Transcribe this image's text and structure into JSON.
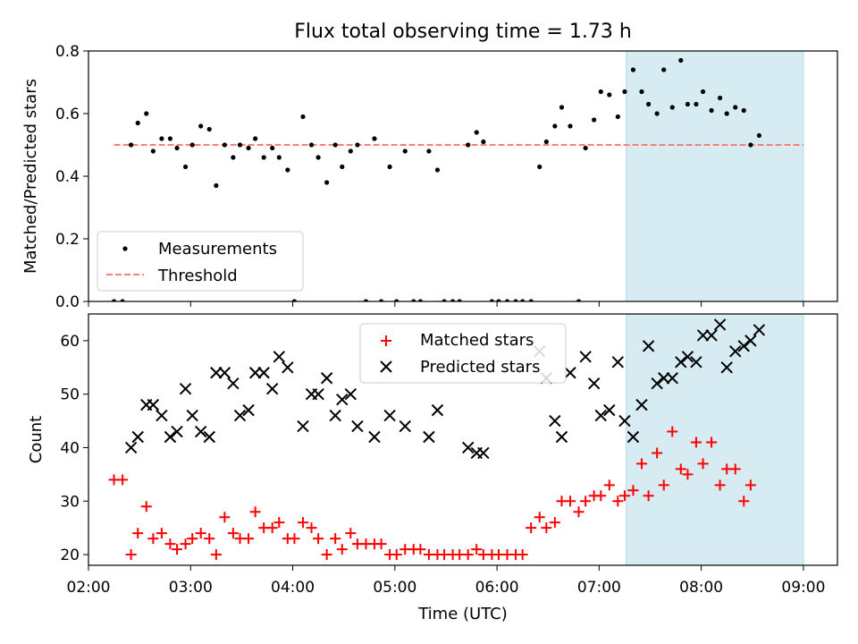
{
  "figure_title": "Flux total observing time = 1.73 h",
  "colors": {
    "measurement": "#000000",
    "threshold": "#ff7f7f",
    "matched": "#ff0000",
    "predicted": "#000000",
    "highlight_band": "#add8e6"
  },
  "chart_data": [
    {
      "type": "scatter",
      "title": "Flux total observing time = 1.73 h",
      "xlabel": "",
      "ylabel": "Matched/Predicted stars",
      "xlim": [
        "02:00",
        "09:20"
      ],
      "ylim": [
        0,
        0.8
      ],
      "yticks": [
        "0.0",
        "0.2",
        "0.4",
        "0.6",
        "0.8"
      ],
      "highlight_band": {
        "x_start": "07:16",
        "x_end": "09:00"
      },
      "threshold": {
        "name": "Threshold",
        "y": 0.5,
        "x_start": "02:15",
        "x_end": "09:00",
        "style": "dashed"
      },
      "legend_position": "lower-left",
      "series": [
        {
          "name": "Measurements",
          "marker": "dot",
          "points": [
            [
              "02:15",
              0
            ],
            [
              "02:20",
              0
            ],
            [
              "02:25",
              0.5
            ],
            [
              "02:29",
              0.57
            ],
            [
              "02:34",
              0.6
            ],
            [
              "02:38",
              0.48
            ],
            [
              "02:43",
              0.52
            ],
            [
              "02:48",
              0.52
            ],
            [
              "02:52",
              0.49
            ],
            [
              "02:57",
              0.43
            ],
            [
              "03:01",
              0.5
            ],
            [
              "03:06",
              0.56
            ],
            [
              "03:11",
              0.55
            ],
            [
              "03:15",
              0.37
            ],
            [
              "03:20",
              0.5
            ],
            [
              "03:25",
              0.46
            ],
            [
              "03:29",
              0.5
            ],
            [
              "03:34",
              0.49
            ],
            [
              "03:38",
              0.52
            ],
            [
              "03:43",
              0.46
            ],
            [
              "03:48",
              0.49
            ],
            [
              "03:52",
              0.46
            ],
            [
              "03:57",
              0.42
            ],
            [
              "04:01",
              0
            ],
            [
              "04:06",
              0.59
            ],
            [
              "04:11",
              0.5
            ],
            [
              "04:15",
              0.46
            ],
            [
              "04:20",
              0.38
            ],
            [
              "04:25",
              0.5
            ],
            [
              "04:29",
              0.43
            ],
            [
              "04:34",
              0.48
            ],
            [
              "04:38",
              0.5
            ],
            [
              "04:43",
              0
            ],
            [
              "04:48",
              0.52
            ],
            [
              "04:52",
              0
            ],
            [
              "04:57",
              0.43
            ],
            [
              "05:01",
              0
            ],
            [
              "05:06",
              0.48
            ],
            [
              "05:11",
              0
            ],
            [
              "05:15",
              0
            ],
            [
              "05:20",
              0.48
            ],
            [
              "05:25",
              0.42
            ],
            [
              "05:29",
              0
            ],
            [
              "05:34",
              0
            ],
            [
              "05:38",
              0
            ],
            [
              "05:43",
              0.5
            ],
            [
              "05:48",
              0.54
            ],
            [
              "05:52",
              0.51
            ],
            [
              "05:57",
              0
            ],
            [
              "06:01",
              0
            ],
            [
              "06:06",
              0
            ],
            [
              "06:11",
              0
            ],
            [
              "06:15",
              0
            ],
            [
              "06:20",
              0
            ],
            [
              "06:25",
              0.43
            ],
            [
              "06:29",
              0.51
            ],
            [
              "06:34",
              0.56
            ],
            [
              "06:38",
              0.62
            ],
            [
              "06:43",
              0.56
            ],
            [
              "06:48",
              0
            ],
            [
              "06:52",
              0.49
            ],
            [
              "06:57",
              0.58
            ],
            [
              "07:01",
              0.67
            ],
            [
              "07:06",
              0.66
            ],
            [
              "07:11",
              0.59
            ],
            [
              "07:15",
              0.67
            ],
            [
              "07:20",
              0.74
            ],
            [
              "07:25",
              0.67
            ],
            [
              "07:29",
              0.63
            ],
            [
              "07:34",
              0.6
            ],
            [
              "07:38",
              0.74
            ],
            [
              "07:43",
              0.62
            ],
            [
              "07:48",
              0.77
            ],
            [
              "07:52",
              0.63
            ],
            [
              "07:57",
              0.63
            ],
            [
              "08:01",
              0.67
            ],
            [
              "08:06",
              0.61
            ],
            [
              "08:11",
              0.65
            ],
            [
              "08:15",
              0.6
            ],
            [
              "08:20",
              0.62
            ],
            [
              "08:25",
              0.61
            ],
            [
              "08:29",
              0.5
            ],
            [
              "08:34",
              0.53
            ]
          ]
        }
      ]
    },
    {
      "type": "scatter",
      "xlabel": "Time (UTC)",
      "ylabel": "Count",
      "xlim": [
        "02:00",
        "09:20"
      ],
      "xticks": [
        "02:00",
        "03:00",
        "04:00",
        "05:00",
        "06:00",
        "07:00",
        "08:00",
        "09:00"
      ],
      "ylim": [
        18,
        65
      ],
      "yticks": [
        "20",
        "30",
        "40",
        "50",
        "60"
      ],
      "highlight_band": {
        "x_start": "07:16",
        "x_end": "09:00"
      },
      "legend_position": "top-center",
      "series": [
        {
          "name": "Matched stars",
          "marker": "plus",
          "points": [
            [
              "02:15",
              34
            ],
            [
              "02:20",
              34
            ],
            [
              "02:25",
              20
            ],
            [
              "02:29",
              24
            ],
            [
              "02:34",
              29
            ],
            [
              "02:38",
              23
            ],
            [
              "02:43",
              24
            ],
            [
              "02:48",
              22
            ],
            [
              "02:52",
              21
            ],
            [
              "02:57",
              22
            ],
            [
              "03:01",
              23
            ],
            [
              "03:06",
              24
            ],
            [
              "03:11",
              23
            ],
            [
              "03:15",
              20
            ],
            [
              "03:20",
              27
            ],
            [
              "03:25",
              24
            ],
            [
              "03:29",
              23
            ],
            [
              "03:34",
              23
            ],
            [
              "03:38",
              28
            ],
            [
              "03:43",
              25
            ],
            [
              "03:48",
              25
            ],
            [
              "03:52",
              26
            ],
            [
              "03:57",
              23
            ],
            [
              "04:01",
              23
            ],
            [
              "04:06",
              26
            ],
            [
              "04:11",
              25
            ],
            [
              "04:15",
              23
            ],
            [
              "04:20",
              20
            ],
            [
              "04:25",
              23
            ],
            [
              "04:29",
              21
            ],
            [
              "04:34",
              24
            ],
            [
              "04:38",
              22
            ],
            [
              "04:43",
              22
            ],
            [
              "04:48",
              22
            ],
            [
              "04:52",
              22
            ],
            [
              "04:57",
              20
            ],
            [
              "05:01",
              20
            ],
            [
              "05:06",
              21
            ],
            [
              "05:11",
              21
            ],
            [
              "05:15",
              21
            ],
            [
              "05:20",
              20
            ],
            [
              "05:25",
              20
            ],
            [
              "05:29",
              20
            ],
            [
              "05:34",
              20
            ],
            [
              "05:38",
              20
            ],
            [
              "05:43",
              20
            ],
            [
              "05:48",
              21
            ],
            [
              "05:52",
              20
            ],
            [
              "05:57",
              20
            ],
            [
              "06:01",
              20
            ],
            [
              "06:06",
              20
            ],
            [
              "06:11",
              20
            ],
            [
              "06:15",
              20
            ],
            [
              "06:20",
              25
            ],
            [
              "06:25",
              27
            ],
            [
              "06:29",
              25
            ],
            [
              "06:34",
              26
            ],
            [
              "06:38",
              30
            ],
            [
              "06:43",
              30
            ],
            [
              "06:48",
              28
            ],
            [
              "06:52",
              30
            ],
            [
              "06:57",
              31
            ],
            [
              "07:01",
              31
            ],
            [
              "07:06",
              33
            ],
            [
              "07:11",
              30
            ],
            [
              "07:15",
              31
            ],
            [
              "07:20",
              32
            ],
            [
              "07:25",
              37
            ],
            [
              "07:29",
              31
            ],
            [
              "07:34",
              39
            ],
            [
              "07:38",
              33
            ],
            [
              "07:43",
              43
            ],
            [
              "07:48",
              36
            ],
            [
              "07:52",
              35
            ],
            [
              "07:57",
              41
            ],
            [
              "08:01",
              37
            ],
            [
              "08:06",
              41
            ],
            [
              "08:11",
              33
            ],
            [
              "08:15",
              36
            ],
            [
              "08:20",
              36
            ],
            [
              "08:25",
              30
            ],
            [
              "08:29",
              33
            ]
          ]
        },
        {
          "name": "Predicted stars",
          "marker": "x",
          "points": [
            [
              "02:25",
              40
            ],
            [
              "02:29",
              42
            ],
            [
              "02:34",
              48
            ],
            [
              "02:38",
              48
            ],
            [
              "02:43",
              46
            ],
            [
              "02:48",
              42
            ],
            [
              "02:52",
              43
            ],
            [
              "02:57",
              51
            ],
            [
              "03:01",
              46
            ],
            [
              "03:06",
              43
            ],
            [
              "03:11",
              42
            ],
            [
              "03:15",
              54
            ],
            [
              "03:20",
              54
            ],
            [
              "03:25",
              52
            ],
            [
              "03:29",
              46
            ],
            [
              "03:34",
              47
            ],
            [
              "03:38",
              54
            ],
            [
              "03:43",
              54
            ],
            [
              "03:48",
              51
            ],
            [
              "03:52",
              57
            ],
            [
              "03:57",
              55
            ],
            [
              "04:06",
              44
            ],
            [
              "04:11",
              50
            ],
            [
              "04:15",
              50
            ],
            [
              "04:20",
              53
            ],
            [
              "04:25",
              46
            ],
            [
              "04:29",
              49
            ],
            [
              "04:34",
              50
            ],
            [
              "04:38",
              44
            ],
            [
              "04:48",
              42
            ],
            [
              "04:57",
              46
            ],
            [
              "05:06",
              44
            ],
            [
              "05:20",
              42
            ],
            [
              "05:25",
              47
            ],
            [
              "05:43",
              40
            ],
            [
              "05:48",
              39
            ],
            [
              "05:52",
              39
            ],
            [
              "06:25",
              58
            ],
            [
              "06:29",
              53
            ],
            [
              "06:34",
              45
            ],
            [
              "06:38",
              42
            ],
            [
              "06:43",
              54
            ],
            [
              "06:52",
              57
            ],
            [
              "06:57",
              52
            ],
            [
              "07:01",
              46
            ],
            [
              "07:06",
              47
            ],
            [
              "07:11",
              56
            ],
            [
              "07:15",
              45
            ],
            [
              "07:20",
              42
            ],
            [
              "07:25",
              48
            ],
            [
              "07:29",
              59
            ],
            [
              "07:34",
              52
            ],
            [
              "07:38",
              53
            ],
            [
              "07:43",
              53
            ],
            [
              "07:48",
              56
            ],
            [
              "07:52",
              57
            ],
            [
              "07:57",
              56
            ],
            [
              "08:01",
              61
            ],
            [
              "08:06",
              61
            ],
            [
              "08:11",
              63
            ],
            [
              "08:15",
              55
            ],
            [
              "08:20",
              58
            ],
            [
              "08:25",
              59
            ],
            [
              "08:29",
              60
            ],
            [
              "08:34",
              62
            ]
          ]
        }
      ]
    }
  ]
}
